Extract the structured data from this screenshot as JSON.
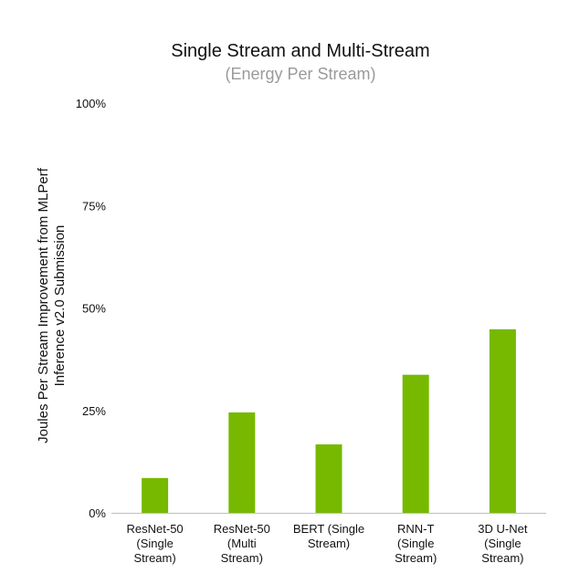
{
  "chart_data": {
    "type": "bar",
    "title": "Single Stream and Multi-Stream",
    "subtitle": "(Energy Per Stream)",
    "ylabel_lines": [
      "Joules  Per Stream Improvement from MLPerf",
      "Inference v2.0 Submission"
    ],
    "xlabel": "",
    "categories": [
      [
        "ResNet-50",
        "(Single",
        "Stream)"
      ],
      [
        "ResNet-50",
        "(Multi",
        "Stream)"
      ],
      [
        "BERT (Single",
        "Stream)"
      ],
      [
        "RNN-T",
        "(Single",
        "Stream)"
      ],
      [
        "3D U-Net",
        "(Single",
        "Stream)"
      ]
    ],
    "values": [
      8.5,
      24.5,
      16.7,
      33.7,
      44.8
    ],
    "ylim": [
      0,
      100
    ],
    "yticks": [
      0,
      25,
      50,
      75,
      100
    ],
    "ytick_labels": [
      "0%",
      "25%",
      "50%",
      "75%",
      "100%"
    ],
    "grid": false,
    "legend": "none",
    "bar_color": "#76b900",
    "axis_color": "#bfbfbf"
  }
}
